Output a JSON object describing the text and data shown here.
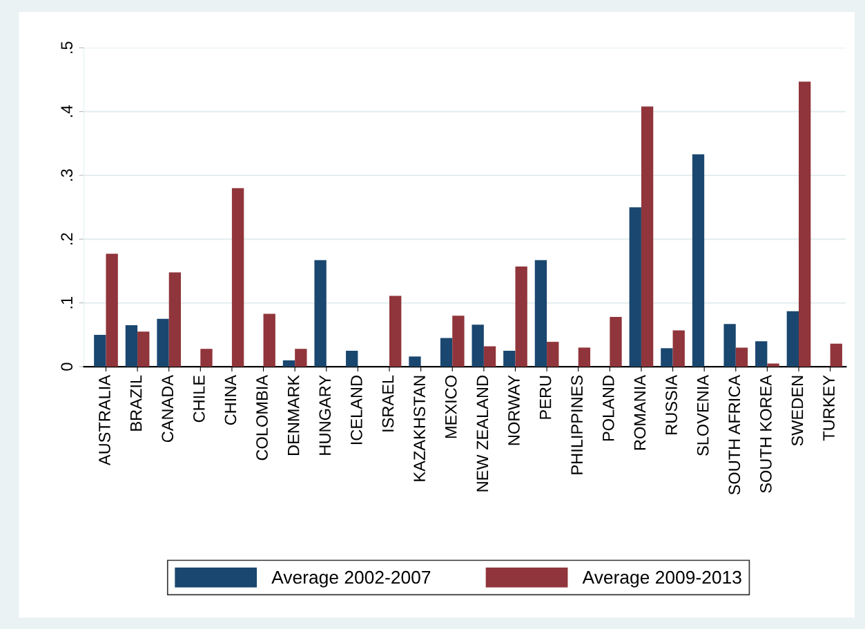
{
  "chart_data": {
    "type": "bar",
    "categories": [
      "AUSTRALIA",
      "BRAZIL",
      "CANADA",
      "CHILE",
      "CHINA",
      "COLOMBIA",
      "DENMARK",
      "HUNGARY",
      "ICELAND",
      "ISRAEL",
      "KAZAKHSTAN",
      "MEXICO",
      "NEW ZEALAND",
      "NORWAY",
      "PERU",
      "PHILIPPINES",
      "POLAND",
      "ROMANIA",
      "RUSSIA",
      "SLOVENIA",
      "SOUTH AFRICA",
      "SOUTH KOREA",
      "SWEDEN",
      "TURKEY"
    ],
    "series": [
      {
        "name": "Average 2002-2007",
        "color": "#1a476f",
        "values": [
          0.05,
          0.065,
          0.075,
          null,
          null,
          null,
          0.01,
          0.167,
          0.025,
          null,
          0.016,
          0.045,
          0.066,
          0.025,
          0.167,
          null,
          null,
          0.25,
          0.029,
          0.333,
          0.067,
          0.04,
          0.087,
          null
        ]
      },
      {
        "name": "Average 2009-2013",
        "color": "#90353b",
        "values": [
          0.177,
          0.055,
          0.148,
          0.028,
          0.28,
          0.083,
          0.028,
          null,
          null,
          0.111,
          null,
          0.08,
          0.032,
          0.157,
          0.039,
          0.03,
          0.078,
          0.408,
          0.057,
          null,
          0.03,
          0.005,
          0.447,
          0.036
        ]
      }
    ],
    "ylim": [
      0,
      0.5
    ],
    "yticks": [
      0,
      {
        "value": 0.1,
        "label": ".1"
      },
      {
        "value": 0.2,
        "label": ".2"
      },
      {
        "value": 0.3,
        "label": ".3"
      },
      {
        "value": 0.4,
        "label": ".4"
      },
      {
        "value": 0.5,
        "label": ".5"
      }
    ],
    "grid": "y",
    "legend": "bottom"
  }
}
